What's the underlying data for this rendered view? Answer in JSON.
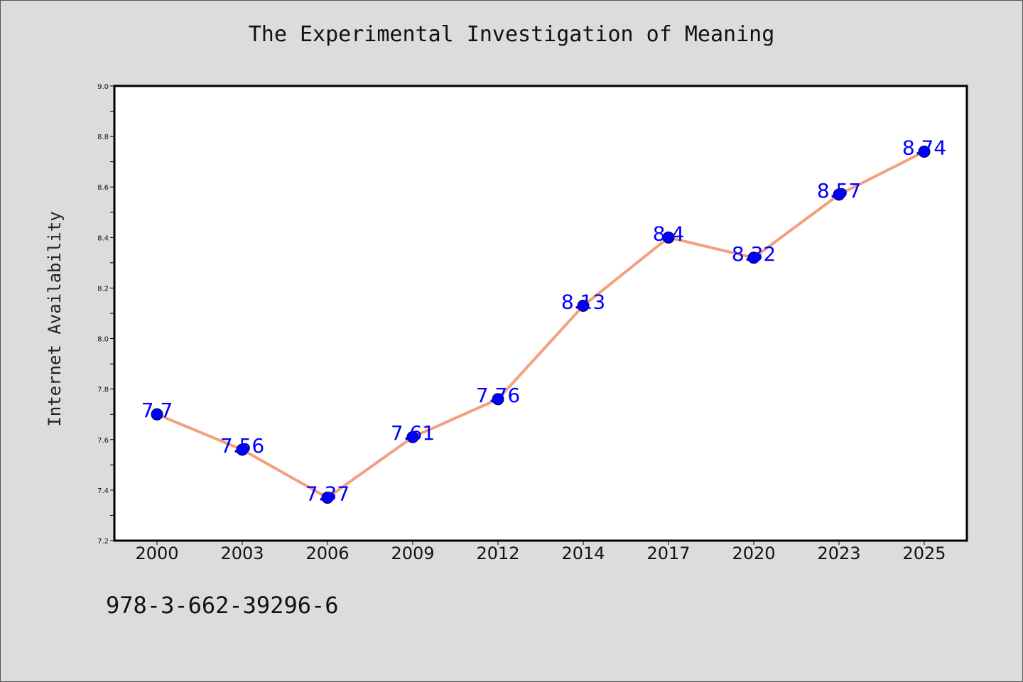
{
  "title": "The Experimental Investigation of Meaning",
  "footer_text": "978-3-662-39296-6",
  "chart_data": {
    "type": "line",
    "title": "The Experimental Investigation of Meaning",
    "xlabel": "",
    "ylabel": "Internet Availability",
    "categories": [
      "2000",
      "2003",
      "2006",
      "2009",
      "2012",
      "2014",
      "2017",
      "2020",
      "2023",
      "2025"
    ],
    "series": [
      {
        "values": [
          7.7,
          7.56,
          7.37,
          7.61,
          7.76,
          8.13,
          8.4,
          8.32,
          8.57,
          8.74
        ]
      }
    ],
    "data_labels": [
      "7.7",
      "7.56",
      "7.37",
      "7.61",
      "7.76",
      "8.13",
      "8.4",
      "8.32",
      "8.57",
      "8.74"
    ],
    "ylim": [
      7.2,
      9.0
    ],
    "yticks": [
      "7.2",
      "7.4",
      "7.6",
      "7.8",
      "8.0",
      "8.2",
      "8.4",
      "8.6",
      "8.8",
      "9.0"
    ],
    "grid": false,
    "line_color": "#f4a07f",
    "marker_color": "#0000ff"
  }
}
